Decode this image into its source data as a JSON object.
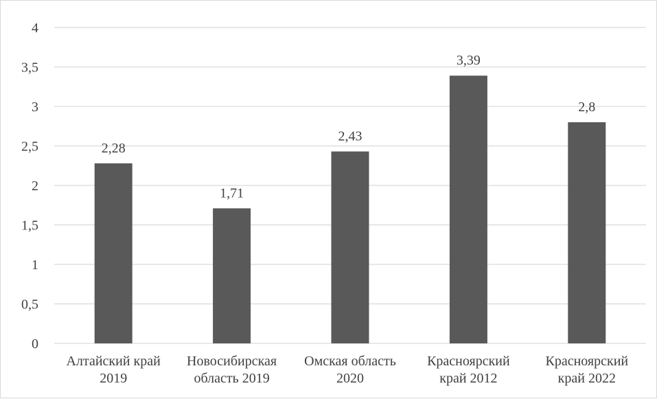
{
  "chart_data": {
    "type": "bar",
    "categories": [
      [
        "Алтайский край",
        "2019"
      ],
      [
        "Новосибирская",
        "область 2019"
      ],
      [
        "Омская область",
        "2020"
      ],
      [
        "Красноярский",
        "край 2012"
      ],
      [
        "Красноярский",
        "край 2022"
      ]
    ],
    "values": [
      2.28,
      1.71,
      2.43,
      3.39,
      2.8
    ],
    "data_labels": [
      "2,28",
      "1,71",
      "2,43",
      "3,39",
      "2,8"
    ],
    "y_ticks": [
      0,
      0.5,
      1,
      1.5,
      2,
      2.5,
      3,
      3.5,
      4
    ],
    "y_tick_labels": [
      "0",
      "0,5",
      "1",
      "1,5",
      "2",
      "2,5",
      "3",
      "3,5",
      "4"
    ],
    "ylim": [
      0,
      4
    ],
    "title": "",
    "xlabel": "",
    "ylabel": "",
    "grid": "horizontal",
    "legend": "none",
    "colors": {
      "bar": "#595959",
      "grid": "#d9d9d9",
      "text": "#404040"
    }
  }
}
